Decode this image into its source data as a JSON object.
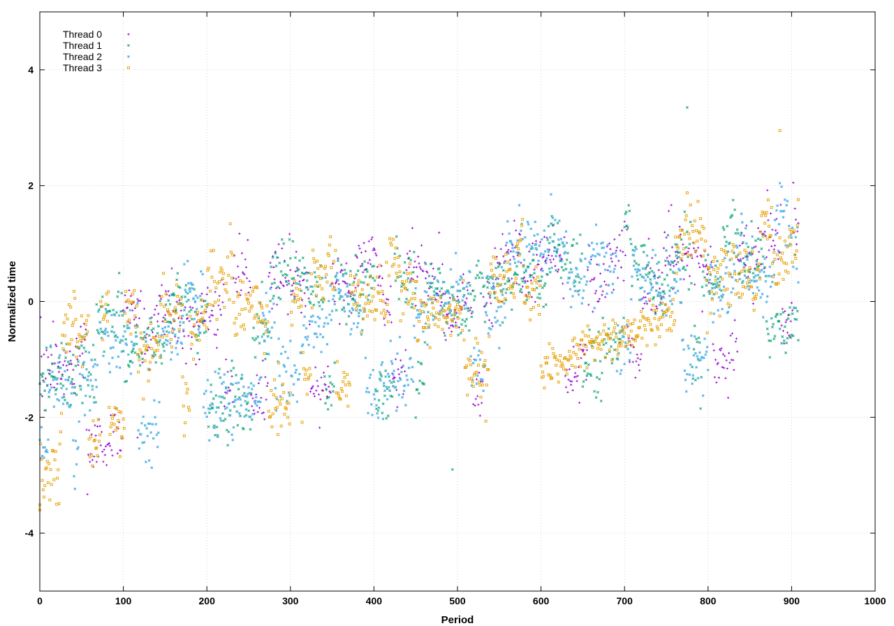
{
  "chart_data": {
    "type": "scatter",
    "title": "",
    "xlabel": "Period",
    "ylabel": "Normalized time",
    "xlim": [
      0,
      1000
    ],
    "ylim": [
      -5,
      5
    ],
    "xticks": [
      0,
      100,
      200,
      300,
      400,
      500,
      600,
      700,
      800,
      900,
      1000
    ],
    "yticks": [
      -4,
      -2,
      0,
      2,
      4
    ],
    "grid": true,
    "legend_position": "top-left",
    "series": [
      {
        "name": "Thread 0",
        "color": "#9400d3",
        "marker": "plus",
        "points_per_period": 1
      },
      {
        "name": "Thread 1",
        "color": "#009e73",
        "marker": "cross",
        "points_per_period": 1
      },
      {
        "name": "Thread 2",
        "color": "#56b4e9",
        "marker": "star",
        "points_per_period": 1
      },
      {
        "name": "Thread 3",
        "color": "#e69f00",
        "marker": "box",
        "points_per_period": 1
      }
    ],
    "x_range_of_data": [
      0,
      908
    ],
    "trend_points": [
      {
        "x": 0,
        "y": -1.3
      },
      {
        "x": 100,
        "y": -0.6
      },
      {
        "x": 200,
        "y": 0.0
      },
      {
        "x": 300,
        "y": 0.1
      },
      {
        "x": 400,
        "y": 0.3
      },
      {
        "x": 500,
        "y": 0.2
      },
      {
        "x": 600,
        "y": 0.6
      },
      {
        "x": 700,
        "y": 0.7
      },
      {
        "x": 800,
        "y": 0.6
      },
      {
        "x": 900,
        "y": 1.1
      }
    ],
    "outliers": [
      {
        "series": "Thread 3",
        "x": 0,
        "y": -3.6
      },
      {
        "series": "Thread 1",
        "x": 494,
        "y": -2.9
      },
      {
        "series": "Thread 1",
        "x": 775,
        "y": 3.35
      },
      {
        "series": "Thread 3",
        "x": 886,
        "y": 2.95
      },
      {
        "series": "Thread 0",
        "x": 117,
        "y": -2.35
      }
    ]
  }
}
